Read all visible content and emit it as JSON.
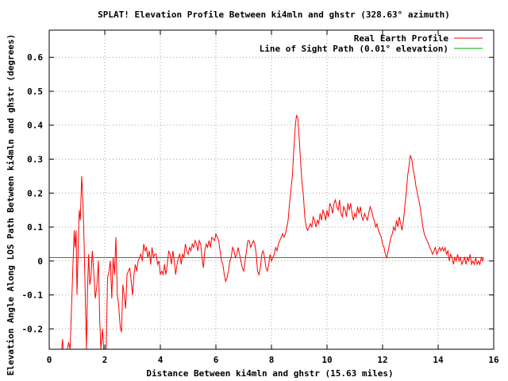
{
  "chart_data": {
    "type": "line",
    "title": "SPLAT! Elevation Profile Between ki4mln and ghstr (328.63° azimuth)",
    "xlabel": "Distance Between ki4mln and ghstr (15.63 miles)",
    "ylabel": "Elevation Angle Along LOS Path Between ki4mln and ghstr (degrees)",
    "xlim": [
      0,
      16
    ],
    "ylim": [
      -0.26,
      0.68
    ],
    "x_ticks": [
      "0",
      "2",
      "4",
      "6",
      "8",
      "10",
      "12",
      "14",
      "16"
    ],
    "x_tick_values": [
      0,
      2,
      4,
      6,
      8,
      10,
      12,
      14,
      16
    ],
    "y_ticks": [
      "-0.2",
      "-0.1",
      "0",
      "0.1",
      "0.2",
      "0.3",
      "0.4",
      "0.5",
      "0.6"
    ],
    "y_tick_values": [
      -0.2,
      -0.1,
      0,
      0.1,
      0.2,
      0.3,
      0.4,
      0.5,
      0.6
    ],
    "grid": true,
    "legend_position": "top-right",
    "series": [
      {
        "name": "Real Earth Profile",
        "color": "#ff0000",
        "points": [
          [
            0.45,
            -0.26
          ],
          [
            0.48,
            -0.23
          ],
          [
            0.5,
            -0.26
          ],
          [
            0.65,
            -0.26
          ],
          [
            0.7,
            -0.24
          ],
          [
            0.75,
            -0.26
          ],
          [
            0.85,
            -0.02
          ],
          [
            0.9,
            0.09
          ],
          [
            0.93,
            0.04
          ],
          [
            0.97,
            0.09
          ],
          [
            1.0,
            -0.1
          ],
          [
            1.04,
            0.03
          ],
          [
            1.08,
            0.15
          ],
          [
            1.12,
            0.12
          ],
          [
            1.17,
            0.25
          ],
          [
            1.22,
            0.16
          ],
          [
            1.26,
            0.04
          ],
          [
            1.3,
            -0.11
          ],
          [
            1.34,
            -0.26
          ],
          [
            1.38,
            -0.08
          ],
          [
            1.42,
            0.02
          ],
          [
            1.46,
            -0.07
          ],
          [
            1.5,
            -0.05
          ],
          [
            1.55,
            0.03
          ],
          [
            1.6,
            -0.03
          ],
          [
            1.66,
            -0.11
          ],
          [
            1.72,
            -0.07
          ],
          [
            1.77,
            0.0
          ],
          [
            1.82,
            -0.18
          ],
          [
            1.86,
            -0.26
          ],
          [
            1.92,
            -0.2
          ],
          [
            1.96,
            -0.26
          ],
          [
            2.05,
            -0.26
          ],
          [
            2.1,
            -0.05
          ],
          [
            2.15,
            -0.03
          ],
          [
            2.2,
            0.0
          ],
          [
            2.25,
            -0.11
          ],
          [
            2.3,
            0.01
          ],
          [
            2.35,
            -0.04
          ],
          [
            2.4,
            0.07
          ],
          [
            2.45,
            -0.1
          ],
          [
            2.5,
            -0.13
          ],
          [
            2.55,
            -0.19
          ],
          [
            2.6,
            -0.21
          ],
          [
            2.65,
            -0.07
          ],
          [
            2.7,
            -0.1
          ],
          [
            2.75,
            -0.14
          ],
          [
            2.8,
            -0.04
          ],
          [
            2.9,
            -0.02
          ],
          [
            2.95,
            -0.06
          ],
          [
            3.0,
            -0.1
          ],
          [
            3.05,
            -0.04
          ],
          [
            3.1,
            -0.01
          ],
          [
            3.15,
            -0.03
          ],
          [
            3.2,
            0.0
          ],
          [
            3.3,
            0.02
          ],
          [
            3.35,
            0.0
          ],
          [
            3.4,
            0.05
          ],
          [
            3.45,
            0.03
          ],
          [
            3.5,
            0.04
          ],
          [
            3.55,
            0.01
          ],
          [
            3.6,
            0.03
          ],
          [
            3.65,
            -0.01
          ],
          [
            3.7,
            0.04
          ],
          [
            3.75,
            0.01
          ],
          [
            3.8,
            0.02
          ],
          [
            3.85,
            0.02
          ],
          [
            3.9,
            -0.01
          ],
          [
            3.95,
            0.0
          ],
          [
            4.0,
            -0.04
          ],
          [
            4.05,
            -0.03
          ],
          [
            4.1,
            -0.04
          ],
          [
            4.15,
            -0.01
          ],
          [
            4.2,
            -0.04
          ],
          [
            4.25,
            -0.01
          ],
          [
            4.3,
            0.03
          ],
          [
            4.35,
            0.02
          ],
          [
            4.4,
            -0.01
          ],
          [
            4.45,
            0.03
          ],
          [
            4.5,
            0.0
          ],
          [
            4.55,
            -0.04
          ],
          [
            4.6,
            -0.01
          ],
          [
            4.65,
            0.01
          ],
          [
            4.7,
            0.02
          ],
          [
            4.75,
            -0.01
          ],
          [
            4.8,
            0.02
          ],
          [
            4.85,
            0.01
          ],
          [
            4.9,
            0.05
          ],
          [
            4.95,
            0.03
          ],
          [
            5.0,
            0.02
          ],
          [
            5.05,
            0.04
          ],
          [
            5.1,
            0.03
          ],
          [
            5.15,
            0.05
          ],
          [
            5.2,
            0.04
          ],
          [
            5.25,
            0.06
          ],
          [
            5.3,
            0.05
          ],
          [
            5.35,
            0.03
          ],
          [
            5.4,
            0.06
          ],
          [
            5.45,
            0.05
          ],
          [
            5.5,
            0.01
          ],
          [
            5.55,
            -0.02
          ],
          [
            5.6,
            0.03
          ],
          [
            5.65,
            0.05
          ],
          [
            5.7,
            0.04
          ],
          [
            5.75,
            0.06
          ],
          [
            5.8,
            0.04
          ],
          [
            5.85,
            0.07
          ],
          [
            5.95,
            0.06
          ],
          [
            6.0,
            0.08
          ],
          [
            6.05,
            0.07
          ],
          [
            6.1,
            0.06
          ],
          [
            6.15,
            0.03
          ],
          [
            6.2,
            0.0
          ],
          [
            6.25,
            -0.01
          ],
          [
            6.3,
            -0.04
          ],
          [
            6.35,
            -0.06
          ],
          [
            6.4,
            -0.05
          ],
          [
            6.45,
            -0.03
          ],
          [
            6.5,
            0.0
          ],
          [
            6.55,
            0.01
          ],
          [
            6.6,
            0.04
          ],
          [
            6.65,
            0.03
          ],
          [
            6.7,
            0.01
          ],
          [
            6.75,
            0.02
          ],
          [
            6.8,
            0.04
          ],
          [
            6.85,
            0.02
          ],
          [
            6.9,
            0.0
          ],
          [
            6.95,
            -0.02
          ],
          [
            7.0,
            -0.03
          ],
          [
            7.05,
            0.0
          ],
          [
            7.1,
            0.03
          ],
          [
            7.15,
            0.06
          ],
          [
            7.2,
            0.06
          ],
          [
            7.25,
            0.04
          ],
          [
            7.3,
            0.05
          ],
          [
            7.35,
            0.06
          ],
          [
            7.4,
            0.05
          ],
          [
            7.45,
            0.02
          ],
          [
            7.5,
            -0.03
          ],
          [
            7.55,
            -0.04
          ],
          [
            7.6,
            -0.02
          ],
          [
            7.65,
            0.02
          ],
          [
            7.7,
            0.03
          ],
          [
            7.75,
            0.01
          ],
          [
            7.8,
            -0.02
          ],
          [
            7.85,
            -0.03
          ],
          [
            7.9,
            -0.01
          ],
          [
            7.95,
            0.02
          ],
          [
            8.0,
            0.0
          ],
          [
            8.05,
            0.01
          ],
          [
            8.1,
            0.02
          ],
          [
            8.15,
            0.04
          ],
          [
            8.2,
            0.03
          ],
          [
            8.25,
            0.05
          ],
          [
            8.3,
            0.06
          ],
          [
            8.35,
            0.07
          ],
          [
            8.4,
            0.08
          ],
          [
            8.45,
            0.07
          ],
          [
            8.5,
            0.08
          ],
          [
            8.55,
            0.1
          ],
          [
            8.6,
            0.12
          ],
          [
            8.65,
            0.17
          ],
          [
            8.7,
            0.21
          ],
          [
            8.75,
            0.25
          ],
          [
            8.8,
            0.32
          ],
          [
            8.85,
            0.39
          ],
          [
            8.9,
            0.43
          ],
          [
            8.95,
            0.42
          ],
          [
            9.0,
            0.36
          ],
          [
            9.05,
            0.29
          ],
          [
            9.1,
            0.23
          ],
          [
            9.15,
            0.19
          ],
          [
            9.2,
            0.13
          ],
          [
            9.25,
            0.1
          ],
          [
            9.3,
            0.09
          ],
          [
            9.35,
            0.1
          ],
          [
            9.4,
            0.11
          ],
          [
            9.45,
            0.1
          ],
          [
            9.5,
            0.13
          ],
          [
            9.55,
            0.12
          ],
          [
            9.6,
            0.1
          ],
          [
            9.65,
            0.12
          ],
          [
            9.7,
            0.11
          ],
          [
            9.75,
            0.14
          ],
          [
            9.8,
            0.12
          ],
          [
            9.85,
            0.15
          ],
          [
            9.9,
            0.14
          ],
          [
            9.95,
            0.12
          ],
          [
            10.0,
            0.15
          ],
          [
            10.05,
            0.13
          ],
          [
            10.1,
            0.17
          ],
          [
            10.15,
            0.16
          ],
          [
            10.2,
            0.14
          ],
          [
            10.25,
            0.17
          ],
          [
            10.3,
            0.18
          ],
          [
            10.35,
            0.16
          ],
          [
            10.4,
            0.15
          ],
          [
            10.45,
            0.18
          ],
          [
            10.5,
            0.14
          ],
          [
            10.55,
            0.13
          ],
          [
            10.6,
            0.16
          ],
          [
            10.65,
            0.15
          ],
          [
            10.7,
            0.13
          ],
          [
            10.75,
            0.17
          ],
          [
            10.8,
            0.15
          ],
          [
            10.85,
            0.17
          ],
          [
            10.9,
            0.14
          ],
          [
            10.95,
            0.12
          ],
          [
            11.0,
            0.14
          ],
          [
            11.05,
            0.13
          ],
          [
            11.1,
            0.16
          ],
          [
            11.15,
            0.14
          ],
          [
            11.2,
            0.16
          ],
          [
            11.25,
            0.13
          ],
          [
            11.3,
            0.12
          ],
          [
            11.35,
            0.14
          ],
          [
            11.4,
            0.13
          ],
          [
            11.45,
            0.12
          ],
          [
            11.5,
            0.14
          ],
          [
            11.55,
            0.16
          ],
          [
            11.6,
            0.15
          ],
          [
            11.65,
            0.13
          ],
          [
            11.7,
            0.12
          ],
          [
            11.75,
            0.1
          ],
          [
            11.8,
            0.11
          ],
          [
            11.85,
            0.09
          ],
          [
            11.9,
            0.08
          ],
          [
            11.95,
            0.07
          ],
          [
            12.0,
            0.05
          ],
          [
            12.05,
            0.04
          ],
          [
            12.1,
            0.02
          ],
          [
            12.15,
            0.01
          ],
          [
            12.2,
            0.03
          ],
          [
            12.25,
            0.05
          ],
          [
            12.3,
            0.07
          ],
          [
            12.35,
            0.08
          ],
          [
            12.4,
            0.1
          ],
          [
            12.45,
            0.09
          ],
          [
            12.5,
            0.12
          ],
          [
            12.55,
            0.1
          ],
          [
            12.6,
            0.13
          ],
          [
            12.65,
            0.11
          ],
          [
            12.7,
            0.09
          ],
          [
            12.75,
            0.12
          ],
          [
            12.8,
            0.16
          ],
          [
            12.85,
            0.2
          ],
          [
            12.9,
            0.25
          ],
          [
            12.95,
            0.28
          ],
          [
            13.0,
            0.31
          ],
          [
            13.05,
            0.3
          ],
          [
            13.1,
            0.27
          ],
          [
            13.15,
            0.25
          ],
          [
            13.2,
            0.22
          ],
          [
            13.25,
            0.2
          ],
          [
            13.3,
            0.18
          ],
          [
            13.35,
            0.16
          ],
          [
            13.4,
            0.13
          ],
          [
            13.45,
            0.1
          ],
          [
            13.5,
            0.08
          ],
          [
            13.55,
            0.07
          ],
          [
            13.6,
            0.06
          ],
          [
            13.65,
            0.05
          ],
          [
            13.7,
            0.04
          ],
          [
            13.75,
            0.03
          ],
          [
            13.8,
            0.02
          ],
          [
            13.85,
            0.03
          ],
          [
            13.9,
            0.04
          ],
          [
            13.95,
            0.02
          ],
          [
            14.0,
            0.03
          ],
          [
            14.05,
            0.04
          ],
          [
            14.1,
            0.03
          ],
          [
            14.15,
            0.04
          ],
          [
            14.2,
            0.03
          ],
          [
            14.25,
            0.04
          ],
          [
            14.3,
            0.02
          ],
          [
            14.35,
            0.03
          ],
          [
            14.4,
            0.0
          ],
          [
            14.45,
            0.02
          ],
          [
            14.5,
            0.01
          ],
          [
            14.55,
            -0.01
          ],
          [
            14.6,
            0.01
          ],
          [
            14.65,
            0.0
          ],
          [
            14.7,
            0.02
          ],
          [
            14.75,
            0.0
          ],
          [
            14.8,
            0.01
          ],
          [
            14.85,
            -0.01
          ],
          [
            14.9,
            0.0
          ],
          [
            14.95,
            0.01
          ],
          [
            15.0,
            -0.01
          ],
          [
            15.05,
            0.01
          ],
          [
            15.1,
            0.0
          ],
          [
            15.15,
            0.02
          ],
          [
            15.2,
            -0.01
          ],
          [
            15.25,
            0.0
          ],
          [
            15.3,
            -0.01
          ],
          [
            15.35,
            0.01
          ],
          [
            15.4,
            -0.01
          ],
          [
            15.45,
            0.0
          ],
          [
            15.5,
            -0.01
          ],
          [
            15.55,
            0.01
          ],
          [
            15.6,
            0.0
          ],
          [
            15.63,
            0.01
          ]
        ]
      },
      {
        "name": "Line of Sight Path (0.01° elevation)",
        "color": "#00aa00",
        "points": [
          [
            0,
            0.01
          ],
          [
            15.63,
            0.01
          ]
        ]
      }
    ]
  }
}
